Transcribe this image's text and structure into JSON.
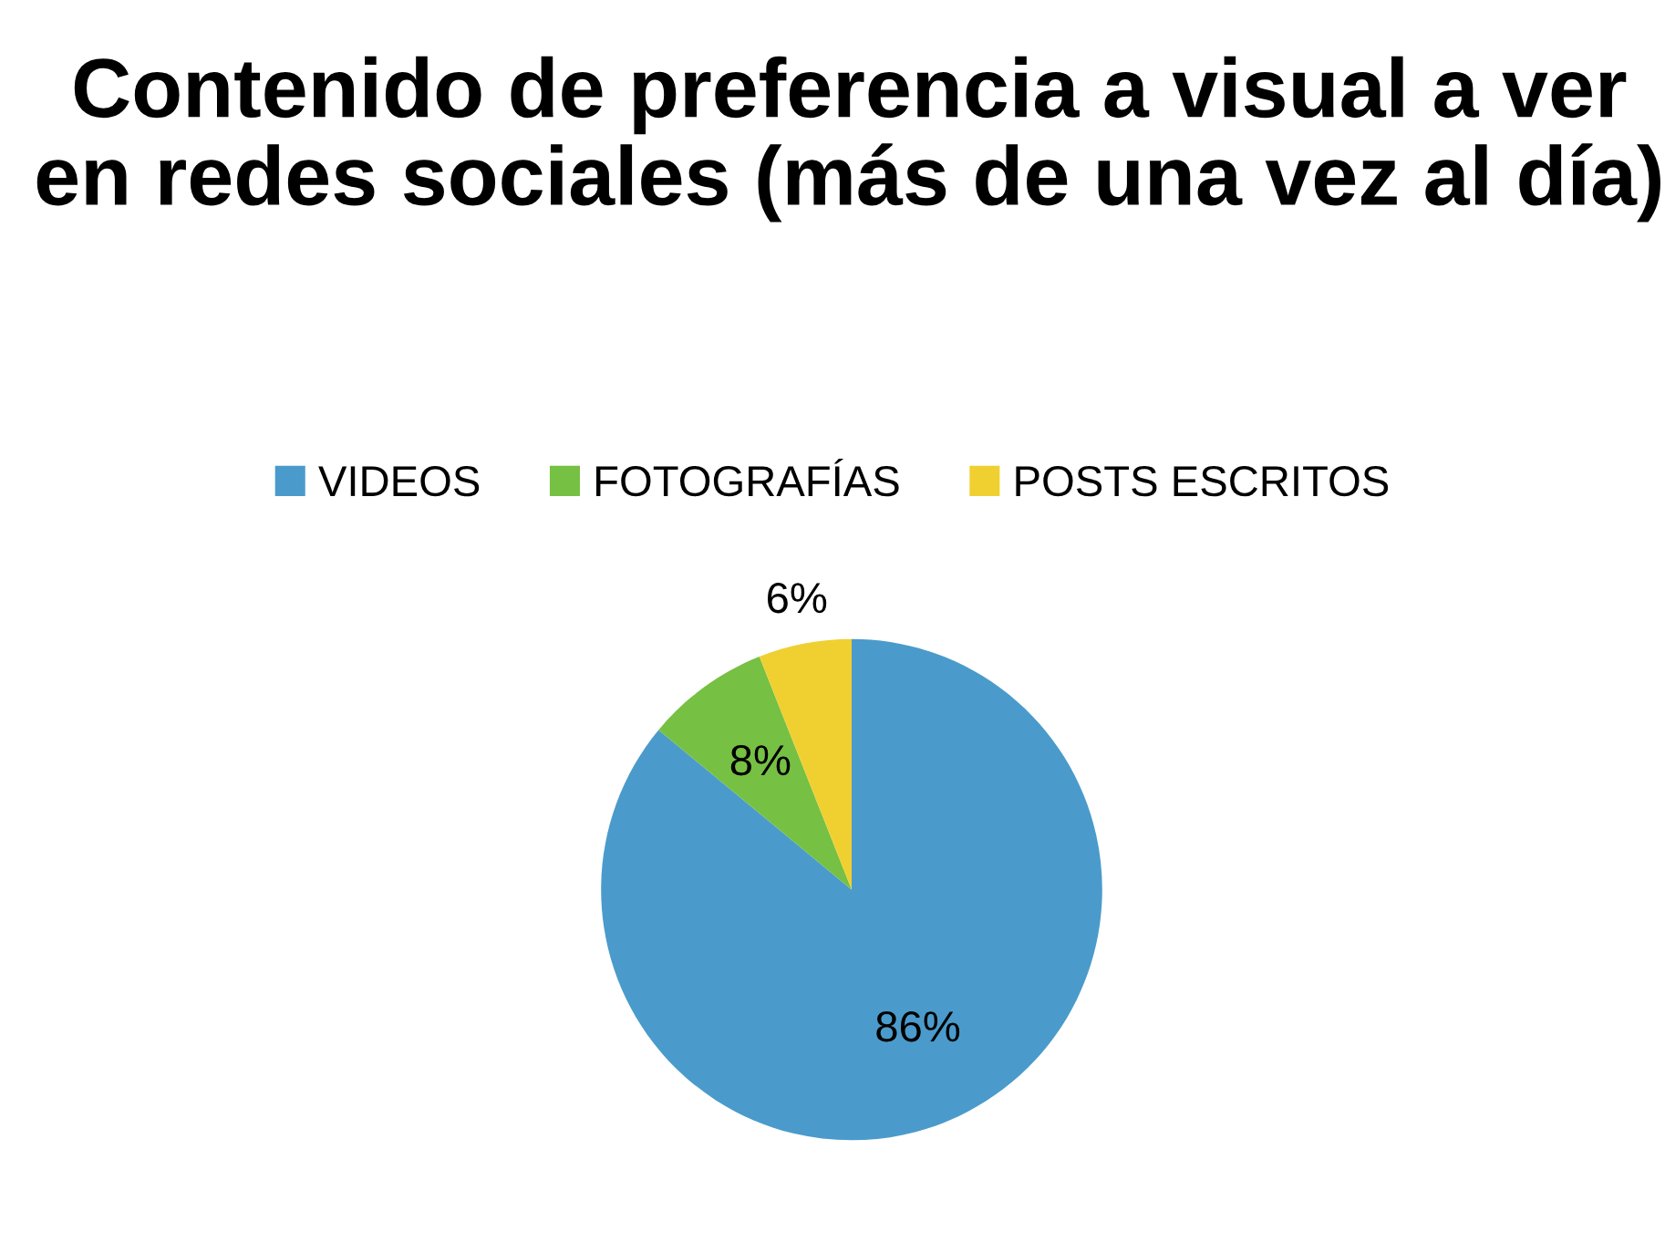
{
  "chart_data": {
    "type": "pie",
    "title": "Contenido de preferencia a visual a ver en redes sociales (más de una vez al día)",
    "categories": [
      "VIDEOS",
      "FOTOGRAFÍAS",
      "POSTS ESCRITOS"
    ],
    "values": [
      86,
      8,
      6
    ],
    "colors": [
      "#4a9bcb",
      "#76c043",
      "#f0d030"
    ],
    "value_labels": [
      "86%",
      "8%",
      "6%"
    ],
    "legend": "top"
  }
}
